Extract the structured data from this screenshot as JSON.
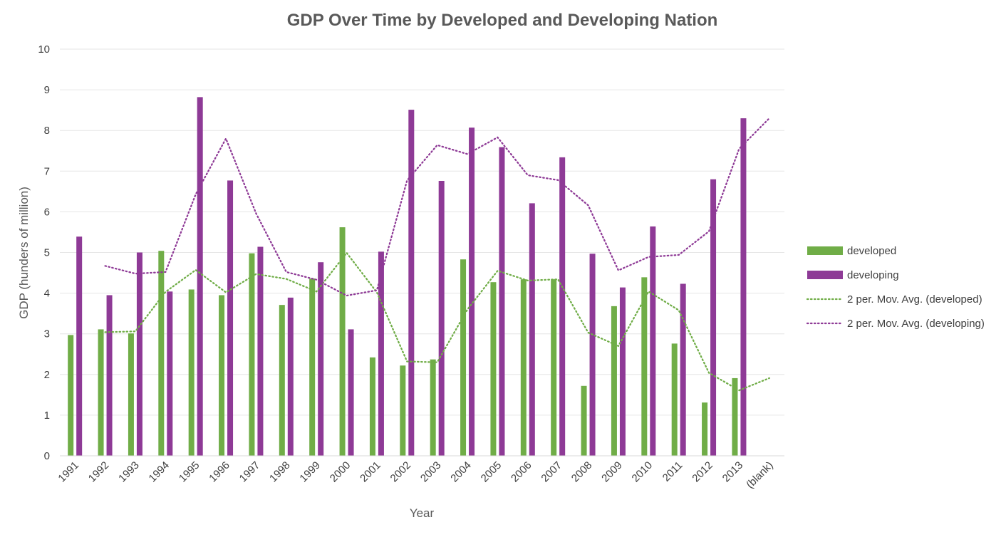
{
  "chart_data": {
    "type": "bar",
    "title": "GDP Over Time by Developed and Developing Nation",
    "xlabel": "Year",
    "ylabel": "GDP (hunders of million)",
    "ylim": [
      0,
      10
    ],
    "y_ticks": [
      0,
      1,
      2,
      3,
      4,
      5,
      6,
      7,
      8,
      9,
      10
    ],
    "grid": true,
    "legend_position": "right",
    "categories": [
      "1991",
      "1992",
      "1993",
      "1994",
      "1995",
      "1996",
      "1997",
      "1998",
      "1999",
      "2000",
      "2001",
      "2002",
      "2003",
      "2004",
      "2005",
      "2006",
      "2007",
      "2008",
      "2009",
      "2010",
      "2011",
      "2012",
      "2013",
      "(blank)"
    ],
    "series": [
      {
        "name": "developed",
        "kind": "bar",
        "color": "#70AD47",
        "values": [
          2.97,
          3.11,
          3.01,
          5.04,
          4.09,
          3.95,
          4.98,
          3.71,
          4.36,
          5.62,
          2.42,
          2.22,
          2.37,
          4.83,
          4.27,
          4.34,
          4.34,
          1.72,
          3.68,
          4.39,
          2.76,
          1.31,
          1.91,
          null
        ]
      },
      {
        "name": "developing",
        "kind": "bar",
        "color": "#8E3A96",
        "values": [
          5.39,
          3.95,
          5.0,
          4.04,
          8.82,
          6.77,
          5.14,
          3.89,
          4.76,
          3.11,
          5.02,
          8.51,
          6.76,
          8.07,
          7.59,
          6.21,
          7.34,
          4.97,
          4.14,
          5.64,
          4.23,
          6.8,
          8.3,
          null
        ]
      },
      {
        "name": "2 per. Mov. Avg. (developed)",
        "kind": "line",
        "style": "dotted",
        "color": "#70AD47",
        "values": [
          null,
          3.04,
          3.06,
          4.03,
          4.57,
          4.02,
          4.47,
          4.35,
          4.04,
          4.99,
          4.02,
          2.32,
          2.3,
          3.6,
          4.55,
          4.31,
          4.34,
          3.03,
          2.7,
          4.04,
          3.58,
          2.04,
          1.61,
          1.91
        ]
      },
      {
        "name": "2 per. Mov. Avg. (developing)",
        "kind": "line",
        "style": "dotted",
        "color": "#8E3A96",
        "values": [
          null,
          4.67,
          4.48,
          4.52,
          6.43,
          7.8,
          5.96,
          4.52,
          4.33,
          3.94,
          4.07,
          6.77,
          7.64,
          7.42,
          7.83,
          6.9,
          6.78,
          6.16,
          4.56,
          4.89,
          4.94,
          5.52,
          7.55,
          8.3
        ]
      }
    ]
  }
}
